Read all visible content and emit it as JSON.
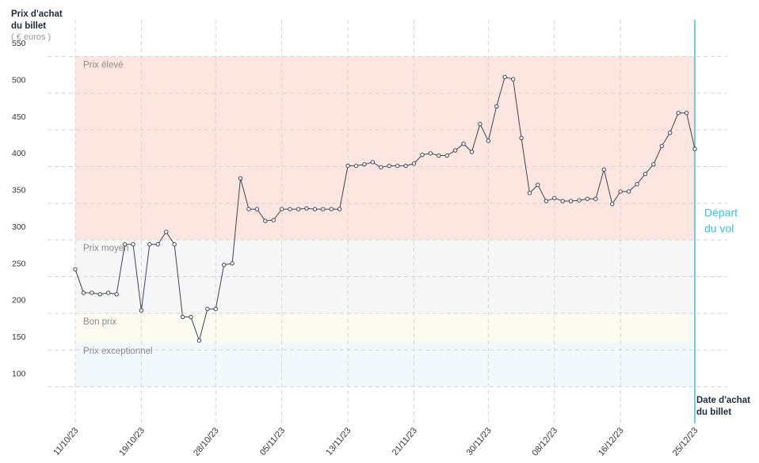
{
  "chart_data": {
    "type": "line",
    "y_title": [
      "Prix d'achat",
      "du billet"
    ],
    "y_unit": "( € euros )",
    "x_title": [
      "Date d'achat",
      "du billet"
    ],
    "departure_label": [
      "Départ",
      "du vol"
    ],
    "departure_color": "#35c3de",
    "categories": [
      "11/10/23",
      null,
      null,
      null,
      null,
      null,
      null,
      null,
      "19/10/23",
      null,
      null,
      null,
      null,
      null,
      null,
      null,
      null,
      "28/10/23",
      null,
      null,
      null,
      null,
      null,
      null,
      null,
      "05/11/23",
      null,
      null,
      null,
      null,
      null,
      null,
      null,
      "13/11/23",
      null,
      null,
      null,
      null,
      null,
      null,
      null,
      "21/11/23",
      null,
      null,
      null,
      null,
      null,
      null,
      null,
      null,
      "30/11/23",
      null,
      null,
      null,
      null,
      null,
      null,
      null,
      "08/12/23",
      null,
      null,
      null,
      null,
      null,
      null,
      null,
      "16/12/23",
      null,
      null,
      null,
      null,
      null,
      null,
      null,
      null,
      "25/12/23"
    ],
    "series": [
      {
        "color": "#3a4556",
        "values": [
          260,
          228,
          228,
          226,
          228,
          226,
          294,
          294,
          204,
          294,
          294,
          311,
          294,
          195,
          195,
          163,
          206,
          206,
          266,
          268,
          384,
          342,
          342,
          326,
          327,
          342,
          342,
          342,
          343,
          342,
          342,
          342,
          342,
          401,
          401,
          403,
          406,
          399,
          401,
          401,
          401,
          404,
          416,
          418,
          415,
          415,
          422,
          431,
          420,
          458,
          435,
          482,
          522,
          519,
          439,
          364,
          375,
          353,
          357,
          353,
          353,
          354,
          356,
          356,
          396,
          349,
          366,
          366,
          376,
          390,
          403,
          428,
          446,
          473,
          473,
          424
        ]
      }
    ],
    "bands": [
      {
        "label": "Prix élevé",
        "from": 300,
        "to": 550,
        "color": "#fde6df"
      },
      {
        "label": "Prix moyen",
        "from": 200,
        "to": 300,
        "color": "#f6f6f6"
      },
      {
        "label": "Bon prix",
        "from": 160,
        "to": 200,
        "color": "#fbfbf0"
      },
      {
        "label": "Prix exceptionnel",
        "from": 100,
        "to": 160,
        "color": "#f2f9fc"
      }
    ],
    "ylim": [
      50,
      600
    ],
    "yticks": [
      100,
      150,
      200,
      250,
      300,
      350,
      400,
      450,
      500,
      550
    ],
    "grid": true
  }
}
